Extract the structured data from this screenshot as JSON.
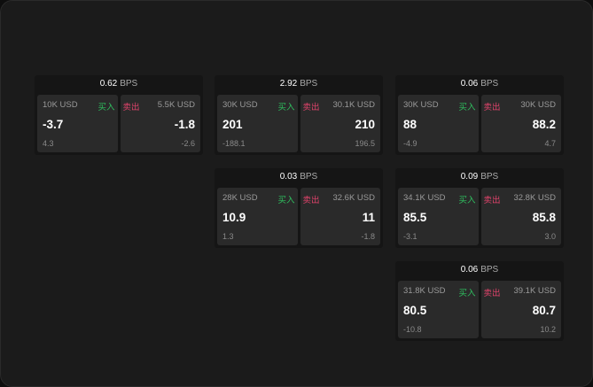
{
  "colors": {
    "buy": "#2fbf5f",
    "sell": "#e0436b",
    "background": "#1b1b1b",
    "cell": "#2a2a2a"
  },
  "labels": {
    "buy": "买入",
    "sell": "卖出",
    "unit": "BPS"
  },
  "cards": [
    {
      "spread": "0.62",
      "buy": {
        "qty": "10K USD",
        "price": "-3.7",
        "diff": "4.3"
      },
      "sell": {
        "qty": "5.5K USD",
        "price": "-1.8",
        "diff": "-2.6"
      }
    },
    {
      "spread": "2.92",
      "buy": {
        "qty": "30K USD",
        "price": "201",
        "diff": "-188.1"
      },
      "sell": {
        "qty": "30.1K USD",
        "price": "210",
        "diff": "196.5"
      }
    },
    {
      "spread": "0.06",
      "buy": {
        "qty": "30K USD",
        "price": "88",
        "diff": "-4.9"
      },
      "sell": {
        "qty": "30K USD",
        "price": "88.2",
        "diff": "4.7"
      }
    },
    {
      "spread": "0.03",
      "buy": {
        "qty": "28K USD",
        "price": "10.9",
        "diff": "1.3"
      },
      "sell": {
        "qty": "32.6K USD",
        "price": "11",
        "diff": "-1.8"
      }
    },
    {
      "spread": "0.09",
      "buy": {
        "qty": "34.1K USD",
        "price": "85.5",
        "diff": "-3.1"
      },
      "sell": {
        "qty": "32.8K USD",
        "price": "85.8",
        "diff": "3.0"
      }
    },
    {
      "spread": "0.06",
      "buy": {
        "qty": "31.8K USD",
        "price": "80.5",
        "diff": "-10.8"
      },
      "sell": {
        "qty": "39.1K USD",
        "price": "80.7",
        "diff": "10.2"
      }
    }
  ]
}
